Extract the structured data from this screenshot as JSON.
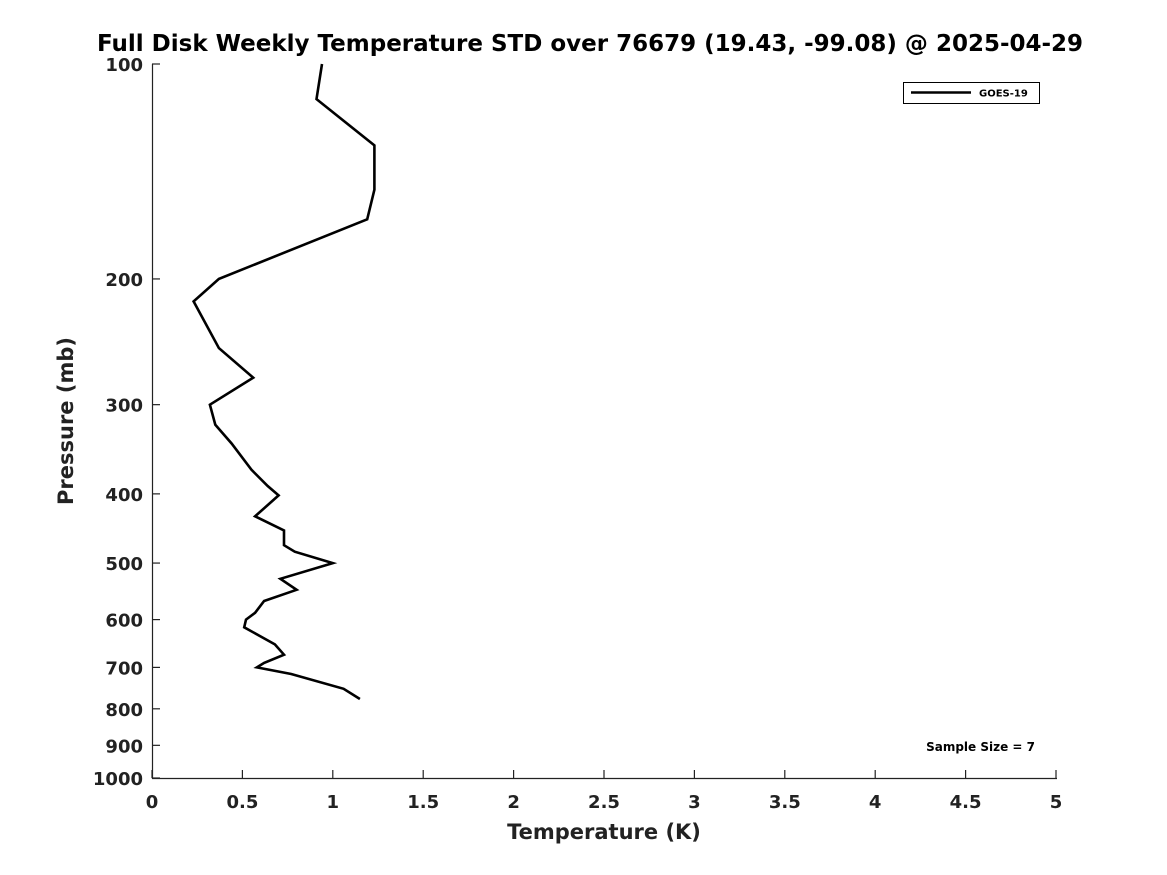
{
  "chart_data": {
    "type": "line",
    "title": "Full Disk Weekly Temperature STD over 76679 (19.43, -99.08) @ 2025-04-29",
    "xlabel": "Temperature (K)",
    "ylabel": "Pressure (mb)",
    "xlim": [
      0,
      5
    ],
    "ylim": [
      100,
      1000
    ],
    "y_scale": "log",
    "y_reversed": true,
    "grid": false,
    "legend_position": "top-right",
    "x_ticks": [
      "0",
      "0.5",
      "1",
      "1.5",
      "2",
      "2.5",
      "3",
      "3.5",
      "4",
      "4.5",
      "5"
    ],
    "x_tick_values": [
      0,
      0.5,
      1,
      1.5,
      2,
      2.5,
      3,
      3.5,
      4,
      4.5,
      5
    ],
    "y_ticks": [
      "100",
      "200",
      "300",
      "400",
      "500",
      "600",
      "700",
      "800",
      "900",
      "1000"
    ],
    "y_tick_values": [
      100,
      200,
      300,
      400,
      500,
      600,
      700,
      800,
      900,
      1000
    ],
    "series": [
      {
        "name": "GOES-19",
        "color": "#000000",
        "x": [
          0.94,
          0.91,
          1.23,
          1.23,
          1.19,
          0.37,
          0.23,
          0.37,
          0.56,
          0.32,
          0.35,
          0.44,
          0.55,
          0.64,
          0.7,
          0.57,
          0.73,
          0.73,
          0.79,
          1.0,
          0.71,
          0.8,
          0.62,
          0.57,
          0.52,
          0.51,
          0.68,
          0.73,
          0.62,
          0.58,
          0.77,
          1.06,
          1.15
        ],
        "y": [
          100,
          112,
          130,
          150,
          165,
          200,
          215,
          250,
          275,
          300,
          320,
          340,
          370,
          390,
          402,
          430,
          450,
          472,
          482,
          500,
          526,
          545,
          565,
          587,
          600,
          615,
          650,
          672,
          690,
          700,
          715,
          750,
          775
        ]
      }
    ],
    "annotations": [
      "Sample Size = 7"
    ]
  }
}
